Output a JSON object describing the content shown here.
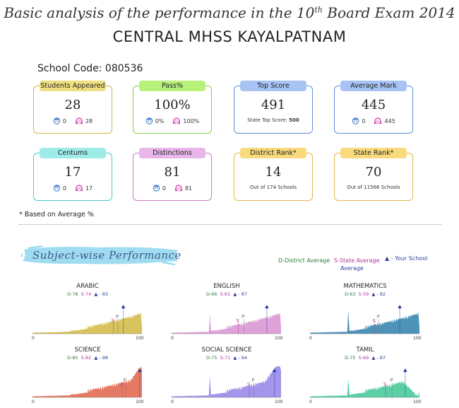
{
  "header": {
    "title_pre": "Basic analysis of the performance in the 10",
    "title_sup": "th",
    "title_post": " Board Exam 2014",
    "school_name": "CENTRAL MHSS KAYALPATNAM",
    "school_code": "School Code: 080536"
  },
  "cards": [
    {
      "id": "students-appeared",
      "label": "Students Appeared",
      "value": "28",
      "boys": "0",
      "girls": "28",
      "sub": "",
      "bg": "#f0df80",
      "border": "#cfb84a"
    },
    {
      "id": "pass-percent",
      "label": "Pass%",
      "value": "100%",
      "boys": "0%",
      "girls": "100%",
      "sub": "",
      "bg": "#b6f27a",
      "border": "#85d04a"
    },
    {
      "id": "top-score",
      "label": "Top Score",
      "value": "491",
      "boys": "",
      "girls": "",
      "sub": "State Top Score: ",
      "sub_bold": "500",
      "bg": "#a7c4f4",
      "border": "#5f8fdc"
    },
    {
      "id": "average-mark",
      "label": "Average Mark",
      "value": "445",
      "boys": "0",
      "girls": "445",
      "sub": "",
      "bg": "#a7c4f4",
      "border": "#5f8fdc"
    },
    {
      "id": "centums",
      "label": "Centums",
      "value": "17",
      "boys": "0",
      "girls": "17",
      "sub": "",
      "bg": "#9eecea",
      "border": "#45c9c6"
    },
    {
      "id": "distinctions",
      "label": "Distinctions",
      "value": "81",
      "boys": "0",
      "girls": "81",
      "sub": "",
      "bg": "#e8b6ea",
      "border": "#c67ac9"
    },
    {
      "id": "district-rank",
      "label": "District Rank*",
      "value": "14",
      "boys": "",
      "girls": "",
      "sub": "Out of 174 Schools",
      "sub_bold": "",
      "bg": "#f9da7c",
      "border": "#e5b74a"
    },
    {
      "id": "state-rank",
      "label": "State Rank*",
      "value": "70",
      "boys": "",
      "girls": "",
      "sub": "Out of 11566 Schools",
      "sub_bold": "",
      "bg": "#f9da7c",
      "border": "#e5b74a"
    }
  ],
  "note": "* Based on Average %",
  "section_title": "Subject-wise Performance",
  "legend": {
    "district": "D-District Average",
    "state": "S-State Average",
    "school": "- Your School",
    "school_line2": "Average",
    "district_color": "#2f7d3a",
    "state_color": "#b4359c",
    "school_color": "#2d3ea0"
  },
  "axis": {
    "min": "0",
    "max": "100",
    "pass_marker": "P",
    "state_marker": "S"
  },
  "chart_data": [
    {
      "type": "area",
      "name": "ARABIC",
      "district": 78,
      "state": 74,
      "school": 83,
      "d_text": "D-78",
      "s_text": "S-74",
      "sc_text": "▲ - 83",
      "color": "#d8c35c",
      "x_range": [
        0,
        100
      ]
    },
    {
      "type": "area",
      "name": "ENGLISH",
      "district": 66,
      "state": 61,
      "school": 87,
      "d_text": "D-66",
      "s_text": "S-61",
      "sc_text": "▲ - 87",
      "color": "#dea2d8",
      "x_range": [
        0,
        100
      ]
    },
    {
      "type": "area",
      "name": "MATHEMATICS",
      "district": 63,
      "state": 59,
      "school": 82,
      "d_text": "D-63",
      "s_text": "S-59",
      "sc_text": "▲ - 82",
      "color": "#4d93b8",
      "x_range": [
        0,
        100
      ]
    },
    {
      "type": "area",
      "name": "SCIENCE",
      "district": 85,
      "state": 82,
      "school": 98,
      "d_text": "D-85",
      "s_text": "S-82",
      "sc_text": "▲ - 98",
      "color": "#e47a64",
      "x_range": [
        0,
        100
      ]
    },
    {
      "type": "area",
      "name": "SOCIAL SCIENCE",
      "district": 75,
      "state": 71,
      "school": 94,
      "d_text": "D-75",
      "s_text": "S-71",
      "sc_text": "▲ - 94",
      "color": "#a394ec",
      "x_range": [
        0,
        100
      ]
    },
    {
      "type": "area",
      "name": "TAMIL",
      "district": 75,
      "state": 69,
      "school": 87,
      "d_text": "D-75",
      "s_text": "S-69",
      "sc_text": "▲ - 87",
      "color": "#5ad0a4",
      "x_range": [
        0,
        100
      ]
    }
  ]
}
